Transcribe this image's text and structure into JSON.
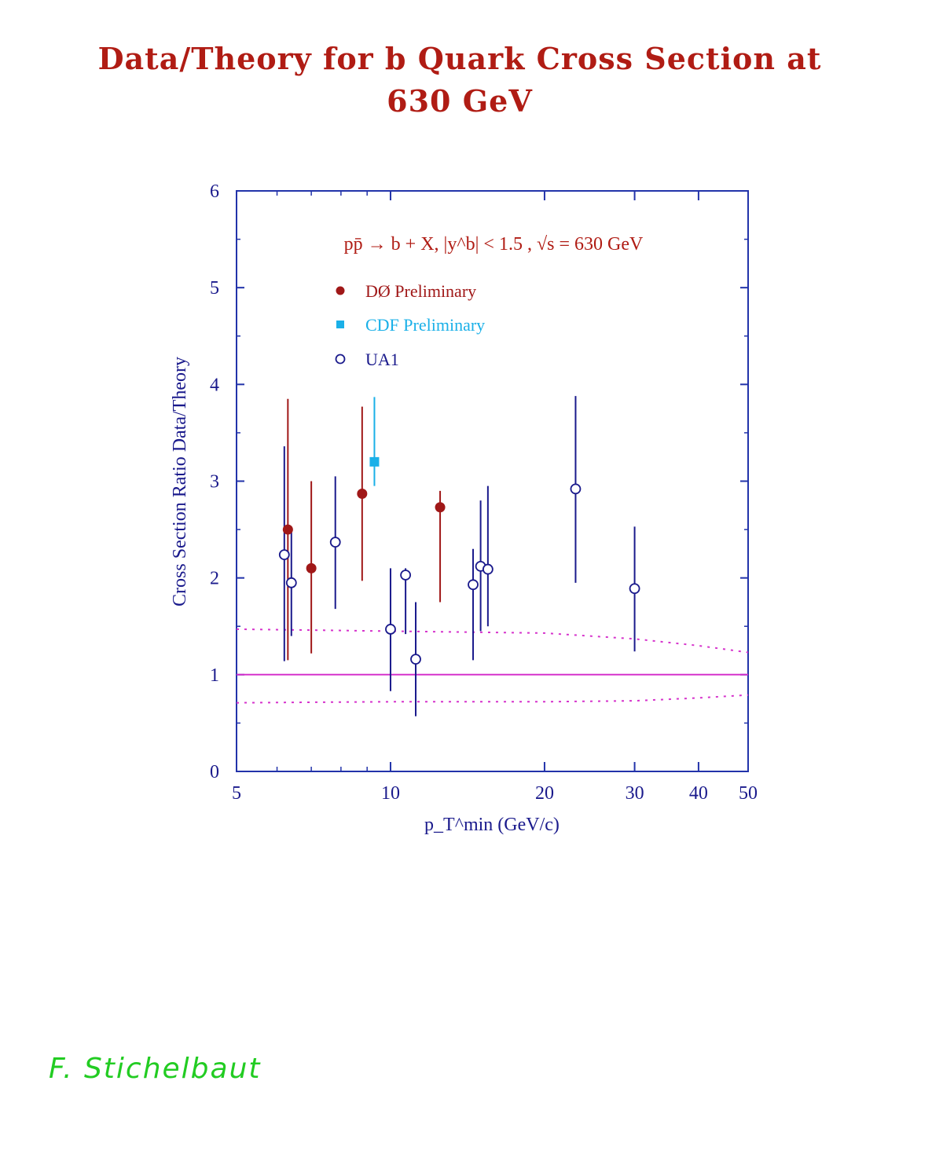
{
  "slide": {
    "title_line1": "Data/Theory for b Quark Cross Section at",
    "title_line2": "630 GeV",
    "signature": "F. Stichelbaut"
  },
  "colors": {
    "title": "#b01c14",
    "d0": "#a01818",
    "cdf": "#1ab0e8",
    "ua1": "#1a1a8c",
    "theory": "#d633cc",
    "frame": "#2233aa"
  },
  "chart_data": {
    "type": "scatter",
    "title": "",
    "process_label": "pp̄ → b + X,  |y^b| < 1.5 , √s = 630 GeV",
    "xlabel": "p_T^min (GeV/c)",
    "ylabel": "Cross Section Ratio  Data/Theory",
    "x_scale": "log",
    "xlim": [
      5,
      50
    ],
    "ylim": [
      0,
      6
    ],
    "x_ticks": [
      5,
      10,
      20,
      30,
      40,
      50
    ],
    "y_ticks": [
      0,
      1,
      2,
      3,
      4,
      5,
      6
    ],
    "legend_position": "top-left",
    "series": [
      {
        "name": "DØ Preliminary",
        "marker": "filled-circle",
        "color": "#a01818",
        "points": [
          {
            "x": 6.3,
            "y": 2.5,
            "ylo": 1.15,
            "yhi": 3.85
          },
          {
            "x": 7.0,
            "y": 2.1,
            "ylo": 1.22,
            "yhi": 3.0
          },
          {
            "x": 8.8,
            "y": 2.87,
            "ylo": 1.97,
            "yhi": 3.77
          },
          {
            "x": 12.5,
            "y": 2.73,
            "ylo": 1.75,
            "yhi": 2.9
          }
        ]
      },
      {
        "name": "CDF Preliminary",
        "marker": "filled-square",
        "color": "#1ab0e8",
        "points": [
          {
            "x": 9.3,
            "y": 3.2,
            "ylo": 2.95,
            "yhi": 3.87
          }
        ]
      },
      {
        "name": "UA1",
        "marker": "open-circle",
        "color": "#1a1a8c",
        "points": [
          {
            "x": 6.2,
            "y": 2.24,
            "ylo": 1.14,
            "yhi": 3.36
          },
          {
            "x": 6.4,
            "y": 1.95,
            "ylo": 1.4,
            "yhi": 2.5
          },
          {
            "x": 7.8,
            "y": 2.37,
            "ylo": 1.68,
            "yhi": 3.05
          },
          {
            "x": 10.0,
            "y": 1.47,
            "ylo": 0.83,
            "yhi": 2.1
          },
          {
            "x": 10.7,
            "y": 2.03,
            "ylo": 1.42,
            "yhi": 2.1
          },
          {
            "x": 11.2,
            "y": 1.16,
            "ylo": 0.57,
            "yhi": 1.75
          },
          {
            "x": 14.5,
            "y": 1.93,
            "ylo": 1.15,
            "yhi": 2.3
          },
          {
            "x": 15.0,
            "y": 2.12,
            "ylo": 1.45,
            "yhi": 2.8
          },
          {
            "x": 15.5,
            "y": 2.09,
            "ylo": 1.5,
            "yhi": 2.95
          },
          {
            "x": 23.0,
            "y": 2.92,
            "ylo": 1.95,
            "yhi": 3.88
          },
          {
            "x": 30.0,
            "y": 1.89,
            "ylo": 1.24,
            "yhi": 2.53
          }
        ]
      }
    ],
    "theory_band": {
      "central": [
        {
          "x": 5,
          "y": 1.0
        },
        {
          "x": 50,
          "y": 1.0
        }
      ],
      "upper": [
        {
          "x": 5,
          "y": 1.47
        },
        {
          "x": 10,
          "y": 1.45
        },
        {
          "x": 20,
          "y": 1.43
        },
        {
          "x": 30,
          "y": 1.37
        },
        {
          "x": 40,
          "y": 1.3
        },
        {
          "x": 50,
          "y": 1.23
        }
      ],
      "lower": [
        {
          "x": 5,
          "y": 0.71
        },
        {
          "x": 10,
          "y": 0.72
        },
        {
          "x": 20,
          "y": 0.72
        },
        {
          "x": 30,
          "y": 0.73
        },
        {
          "x": 40,
          "y": 0.76
        },
        {
          "x": 50,
          "y": 0.79
        }
      ]
    }
  }
}
